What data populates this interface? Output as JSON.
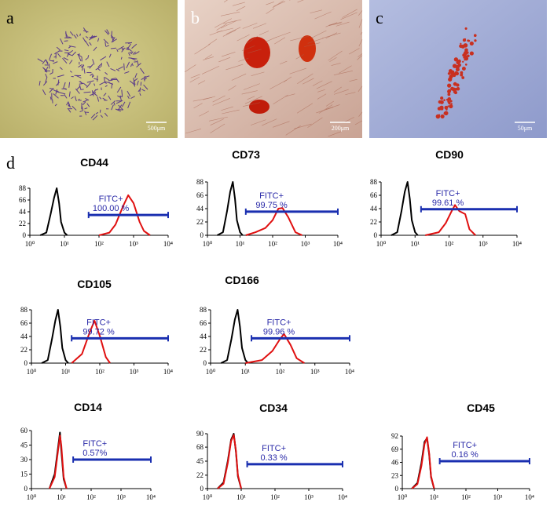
{
  "panels": [
    {
      "label": "a",
      "scale_bar": "500μm"
    },
    {
      "label": "b",
      "scale_bar": "200μm"
    },
    {
      "label": "c",
      "scale_bar": "50μm"
    }
  ],
  "panel_d_label": "d",
  "chart_data": [
    {
      "type": "line",
      "title": "CD44",
      "xscale": "log",
      "xlim": [
        1,
        10000
      ],
      "xticks": [
        {
          "value": 1,
          "label": "10⁰"
        },
        {
          "value": 10,
          "label": "10¹"
        },
        {
          "value": 100,
          "label": "10²"
        },
        {
          "value": 1000,
          "label": "10³"
        },
        {
          "value": 10000,
          "label": "10⁴"
        }
      ],
      "ylim": [
        0,
        88
      ],
      "yticks": [
        0,
        22,
        44,
        66,
        88
      ],
      "series": [
        {
          "color": "#000000",
          "x": [
            2,
            3,
            4,
            5,
            6,
            7,
            8,
            10,
            12
          ],
          "values": [
            0,
            5,
            40,
            70,
            88,
            60,
            25,
            5,
            0
          ]
        },
        {
          "color": "#e01010",
          "x": [
            100,
            200,
            300,
            500,
            700,
            1000,
            1500,
            2000,
            3000
          ],
          "values": [
            0,
            5,
            20,
            55,
            75,
            60,
            25,
            8,
            0
          ]
        }
      ],
      "annotation": "FITC+",
      "gate": {
        "value": 100,
        "label": "100.00 %",
        "x": [
          50,
          10000
        ],
        "y": 38
      }
    },
    {
      "type": "line",
      "title": "CD73",
      "xscale": "log",
      "xlim": [
        1,
        10000
      ],
      "xticks": [
        {
          "value": 1,
          "label": "10⁰"
        },
        {
          "value": 10,
          "label": "10¹"
        },
        {
          "value": 100,
          "label": "10²"
        },
        {
          "value": 1000,
          "label": "10³"
        },
        {
          "value": 10000,
          "label": "10⁴"
        }
      ],
      "ylim": [
        0,
        88
      ],
      "yticks": [
        0,
        22,
        44,
        66,
        88
      ],
      "series": [
        {
          "color": "#000000",
          "x": [
            2,
            3,
            4,
            5,
            6,
            7,
            8,
            10,
            12
          ],
          "values": [
            0,
            5,
            40,
            72,
            88,
            60,
            25,
            5,
            0
          ]
        },
        {
          "color": "#e01010",
          "x": [
            15,
            30,
            60,
            100,
            150,
            200,
            300,
            500,
            800
          ],
          "values": [
            0,
            5,
            12,
            25,
            44,
            45,
            30,
            5,
            0
          ]
        }
      ],
      "annotation": "FITC+",
      "gate": {
        "value": 99.75,
        "label": "99.75  %",
        "x": [
          15,
          10000
        ],
        "y": 39
      }
    },
    {
      "type": "line",
      "title": "CD90",
      "xscale": "log",
      "xlim": [
        1,
        10000
      ],
      "xticks": [
        {
          "value": 1,
          "label": "10⁰"
        },
        {
          "value": 10,
          "label": "10¹"
        },
        {
          "value": 100,
          "label": "10²"
        },
        {
          "value": 1000,
          "label": "10³"
        },
        {
          "value": 10000,
          "label": "10⁴"
        }
      ],
      "ylim": [
        0,
        88
      ],
      "yticks": [
        0,
        22,
        44,
        66,
        88
      ],
      "series": [
        {
          "color": "#000000",
          "x": [
            2,
            3,
            4,
            5,
            6,
            7,
            8,
            10,
            12
          ],
          "values": [
            0,
            5,
            40,
            72,
            88,
            60,
            25,
            5,
            0
          ]
        },
        {
          "color": "#e01010",
          "x": [
            20,
            50,
            80,
            120,
            150,
            200,
            300,
            400,
            600
          ],
          "values": [
            0,
            5,
            20,
            40,
            50,
            40,
            35,
            10,
            0
          ]
        }
      ],
      "annotation": "FITC+",
      "gate": {
        "value": 99.61,
        "label": "99.61  %",
        "x": [
          15,
          10000
        ],
        "y": 43
      }
    },
    {
      "type": "line",
      "title": "CD105",
      "xscale": "log",
      "xlim": [
        1,
        10000
      ],
      "xticks": [
        {
          "value": 1,
          "label": "10⁰"
        },
        {
          "value": 10,
          "label": "10¹"
        },
        {
          "value": 100,
          "label": "10²"
        },
        {
          "value": 1000,
          "label": "10³"
        },
        {
          "value": 10000,
          "label": "10⁴"
        }
      ],
      "ylim": [
        0,
        88
      ],
      "yticks": [
        0,
        22,
        44,
        66,
        88
      ],
      "series": [
        {
          "color": "#000000",
          "x": [
            2,
            3,
            4,
            5,
            6,
            7,
            8,
            10,
            12
          ],
          "values": [
            0,
            5,
            40,
            70,
            88,
            60,
            25,
            5,
            0
          ]
        },
        {
          "color": "#e01010",
          "x": [
            15,
            30,
            50,
            70,
            100,
            150,
            200
          ],
          "values": [
            0,
            15,
            50,
            70,
            45,
            10,
            0
          ]
        }
      ],
      "annotation": "FITC+",
      "gate": {
        "value": 99.72,
        "label": "99.72  %",
        "x": [
          15,
          10000
        ],
        "y": 41
      }
    },
    {
      "type": "line",
      "title": "CD166",
      "xscale": "log",
      "xlim": [
        1,
        10000
      ],
      "xticks": [
        {
          "value": 1,
          "label": "10⁰"
        },
        {
          "value": 10,
          "label": "10¹"
        },
        {
          "value": 100,
          "label": "10²"
        },
        {
          "value": 1000,
          "label": "10³"
        },
        {
          "value": 10000,
          "label": "10⁴"
        }
      ],
      "ylim": [
        0,
        88
      ],
      "yticks": [
        0,
        22,
        44,
        66,
        88
      ],
      "series": [
        {
          "color": "#000000",
          "x": [
            2,
            3,
            4,
            5,
            6,
            7,
            8,
            10,
            12
          ],
          "values": [
            0,
            5,
            40,
            72,
            88,
            60,
            25,
            5,
            0
          ]
        },
        {
          "color": "#e01010",
          "x": [
            10,
            30,
            60,
            100,
            130,
            200,
            300,
            500
          ],
          "values": [
            0,
            5,
            20,
            40,
            48,
            30,
            8,
            0
          ]
        }
      ],
      "annotation": "FITC+",
      "gate": {
        "value": 99.96,
        "label": "99.96  %",
        "x": [
          15,
          10000
        ],
        "y": 41
      }
    },
    {
      "type": "line",
      "title": "CD14",
      "xscale": "log",
      "xlim": [
        1,
        10000
      ],
      "xticks": [
        {
          "value": 1,
          "label": "10⁰"
        },
        {
          "value": 10,
          "label": "10¹"
        },
        {
          "value": 100,
          "label": "10²"
        },
        {
          "value": 1000,
          "label": "10³"
        },
        {
          "value": 10000,
          "label": "10⁴"
        }
      ],
      "ylim": [
        0,
        60
      ],
      "yticks": [
        0,
        15,
        30,
        45,
        60
      ],
      "series": [
        {
          "color": "#000000",
          "x": [
            4,
            6,
            8,
            9,
            10,
            12,
            15
          ],
          "values": [
            0,
            15,
            45,
            58,
            40,
            10,
            0
          ]
        },
        {
          "color": "#e01010",
          "x": [
            4,
            6,
            8,
            9,
            10,
            12,
            15
          ],
          "values": [
            0,
            12,
            42,
            55,
            45,
            12,
            0
          ]
        }
      ],
      "annotation": "FITC+",
      "gate": {
        "value": 0.57,
        "label": "0.57%",
        "x": [
          25,
          10000
        ],
        "y": 30
      }
    },
    {
      "type": "line",
      "title": "CD34",
      "xscale": "log",
      "xlim": [
        1,
        10000
      ],
      "xticks": [
        {
          "value": 1,
          "label": "10⁰"
        },
        {
          "value": 10,
          "label": "10¹"
        },
        {
          "value": 100,
          "label": "10²"
        },
        {
          "value": 1000,
          "label": "10³"
        },
        {
          "value": 10000,
          "label": "10⁴"
        }
      ],
      "ylim": [
        0,
        90
      ],
      "yticks": [
        0,
        22,
        45,
        68,
        90
      ],
      "series": [
        {
          "color": "#000000",
          "x": [
            2,
            3,
            4,
            5,
            6,
            7,
            8,
            10
          ],
          "values": [
            0,
            10,
            45,
            80,
            90,
            60,
            20,
            0
          ]
        },
        {
          "color": "#e01010",
          "x": [
            2,
            3,
            4,
            5,
            6,
            7,
            8,
            10
          ],
          "values": [
            0,
            8,
            42,
            78,
            88,
            62,
            22,
            0
          ]
        }
      ],
      "annotation": "FITC+",
      "gate": {
        "value": 0.33,
        "label": "0.33  %",
        "x": [
          15,
          10000
        ],
        "y": 40
      }
    },
    {
      "type": "line",
      "title": "CD45",
      "xscale": "log",
      "xlim": [
        1,
        10000
      ],
      "xticks": [
        {
          "value": 1,
          "label": "10⁰"
        },
        {
          "value": 10,
          "label": "10¹"
        },
        {
          "value": 100,
          "label": "10²"
        },
        {
          "value": 1000,
          "label": "10³"
        },
        {
          "value": 10000,
          "label": "10⁴"
        }
      ],
      "ylim": [
        0,
        92
      ],
      "yticks": [
        0,
        23,
        46,
        69,
        92
      ],
      "series": [
        {
          "color": "#000000",
          "x": [
            2,
            3,
            4,
            5,
            6,
            7,
            8,
            10
          ],
          "values": [
            0,
            10,
            45,
            82,
            88,
            60,
            20,
            0
          ]
        },
        {
          "color": "#e01010",
          "x": [
            2,
            3,
            4,
            5,
            6,
            7,
            8,
            10
          ],
          "values": [
            0,
            8,
            40,
            78,
            90,
            62,
            22,
            0
          ]
        }
      ],
      "annotation": "FITC+",
      "gate": {
        "value": 0.16,
        "label": "0.16  %",
        "x": [
          15,
          10000
        ],
        "y": 48
      }
    }
  ]
}
